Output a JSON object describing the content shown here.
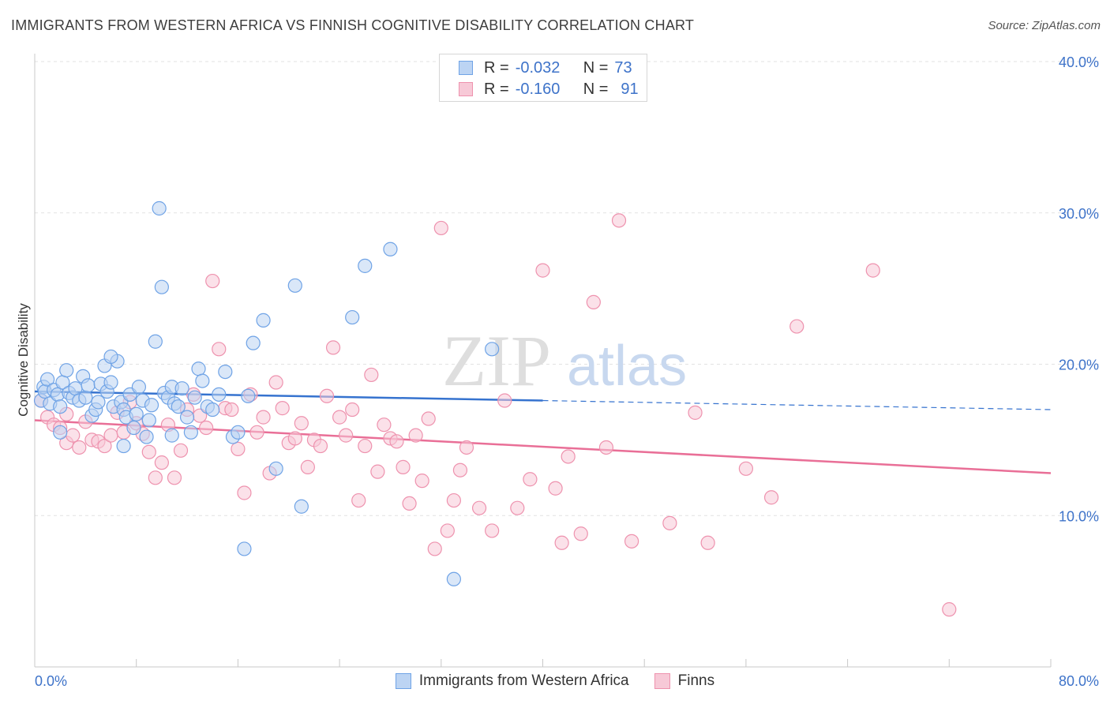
{
  "header": {
    "title": "IMMIGRANTS FROM WESTERN AFRICA VS FINNISH COGNITIVE DISABILITY CORRELATION CHART",
    "source": "Source: ZipAtlas.com"
  },
  "watermark": {
    "zip": "ZIP",
    "atlas": "atlas"
  },
  "legend": {
    "rows": [
      {
        "r_label": "R =",
        "r_value": "-0.032",
        "n_label": "N =",
        "n_value": "73"
      },
      {
        "r_label": "R =",
        "r_value": "-0.160",
        "n_label": "N =",
        "n_value": "91"
      }
    ]
  },
  "bottom_legend": {
    "series_a": "Immigrants from Western Africa",
    "series_b": "Finns"
  },
  "axes": {
    "x_min_label": "0.0%",
    "x_max_label": "80.0%",
    "ylabel": "Cognitive Disability"
  },
  "colors": {
    "blue": "#6fa3e6",
    "blue_fill": "#bcd4f3",
    "blue_line": "#3673cf",
    "pink": "#ee92ae",
    "pink_fill": "#f7c9d7",
    "pink_line": "#e96f97",
    "grid": "#e2e2e2",
    "tick_text": "#3e73c9"
  },
  "chart_data": {
    "type": "scatter",
    "title": "IMMIGRANTS FROM WESTERN AFRICA VS FINNISH COGNITIVE DISABILITY CORRELATION CHART",
    "xlabel": "",
    "ylabel": "Cognitive Disability",
    "xlim": [
      0,
      80
    ],
    "ylim": [
      0,
      40
    ],
    "y_ticks": [
      10,
      20,
      30,
      40
    ],
    "y_tick_labels": [
      "10.0%",
      "20.0%",
      "30.0%",
      "40.0%"
    ],
    "grid": true,
    "legend_position": "top-center",
    "series": [
      {
        "name": "Immigrants from Western Africa",
        "R": -0.032,
        "N": 73,
        "trend": {
          "x": [
            0,
            40
          ],
          "y": [
            18.2,
            17.6
          ],
          "dashed_to": [
            80,
            17.0
          ]
        },
        "points": [
          [
            0.5,
            17.6
          ],
          [
            0.7,
            18.5
          ],
          [
            0.8,
            18.2
          ],
          [
            1.0,
            19.0
          ],
          [
            1.2,
            17.4
          ],
          [
            1.5,
            18.3
          ],
          [
            1.8,
            18.0
          ],
          [
            2.0,
            17.2
          ],
          [
            2.2,
            18.8
          ],
          [
            2.5,
            19.6
          ],
          [
            2.7,
            18.1
          ],
          [
            3.0,
            17.8
          ],
          [
            3.2,
            18.4
          ],
          [
            3.5,
            17.6
          ],
          [
            3.8,
            19.2
          ],
          [
            4.0,
            17.8
          ],
          [
            4.2,
            18.6
          ],
          [
            4.5,
            16.6
          ],
          [
            4.8,
            17.0
          ],
          [
            5.0,
            17.5
          ],
          [
            5.2,
            18.7
          ],
          [
            5.5,
            19.9
          ],
          [
            5.7,
            18.2
          ],
          [
            6.0,
            18.8
          ],
          [
            6.2,
            17.2
          ],
          [
            6.5,
            20.2
          ],
          [
            6.8,
            17.5
          ],
          [
            7.0,
            17.0
          ],
          [
            7.2,
            16.5
          ],
          [
            7.5,
            18.0
          ],
          [
            7.8,
            15.8
          ],
          [
            8.0,
            16.7
          ],
          [
            8.2,
            18.5
          ],
          [
            8.5,
            17.6
          ],
          [
            8.8,
            15.2
          ],
          [
            9.0,
            16.3
          ],
          [
            9.2,
            17.3
          ],
          [
            9.5,
            21.5
          ],
          [
            9.8,
            30.3
          ],
          [
            10.0,
            25.1
          ],
          [
            10.2,
            18.1
          ],
          [
            10.5,
            17.8
          ],
          [
            10.8,
            18.5
          ],
          [
            11.0,
            17.4
          ],
          [
            11.3,
            17.2
          ],
          [
            11.6,
            18.4
          ],
          [
            12.0,
            16.5
          ],
          [
            12.3,
            15.5
          ],
          [
            12.6,
            17.8
          ],
          [
            12.9,
            19.7
          ],
          [
            13.2,
            18.9
          ],
          [
            13.6,
            17.2
          ],
          [
            14.0,
            17.0
          ],
          [
            14.5,
            18.0
          ],
          [
            15.0,
            19.5
          ],
          [
            15.6,
            15.2
          ],
          [
            16.0,
            15.5
          ],
          [
            16.8,
            17.9
          ],
          [
            17.2,
            21.4
          ],
          [
            18.0,
            22.9
          ],
          [
            19.0,
            13.1
          ],
          [
            20.5,
            25.2
          ],
          [
            21.0,
            10.6
          ],
          [
            25.0,
            23.1
          ],
          [
            26.0,
            26.5
          ],
          [
            28.0,
            27.6
          ],
          [
            36.0,
            21.0
          ],
          [
            33.0,
            5.8
          ],
          [
            10.8,
            15.3
          ],
          [
            7.0,
            14.6
          ],
          [
            2.0,
            15.5
          ],
          [
            16.5,
            7.8
          ],
          [
            6.0,
            20.5
          ]
        ]
      },
      {
        "name": "Finns",
        "R": -0.16,
        "N": 91,
        "trend": {
          "x": [
            0,
            80
          ],
          "y": [
            16.3,
            12.8
          ]
        },
        "points": [
          [
            0.5,
            17.6
          ],
          [
            1.0,
            16.5
          ],
          [
            1.5,
            16.0
          ],
          [
            2.0,
            15.8
          ],
          [
            2.5,
            14.8
          ],
          [
            3.0,
            15.3
          ],
          [
            3.5,
            14.5
          ],
          [
            4.0,
            16.2
          ],
          [
            4.5,
            15.0
          ],
          [
            5.0,
            14.9
          ],
          [
            5.5,
            14.6
          ],
          [
            6.0,
            15.3
          ],
          [
            6.5,
            16.8
          ],
          [
            7.0,
            15.5
          ],
          [
            7.5,
            17.5
          ],
          [
            8.0,
            16.1
          ],
          [
            8.5,
            15.4
          ],
          [
            9.0,
            14.2
          ],
          [
            9.5,
            12.5
          ],
          [
            10.0,
            13.5
          ],
          [
            10.5,
            16.0
          ],
          [
            11.0,
            12.5
          ],
          [
            11.5,
            14.3
          ],
          [
            12.0,
            17.0
          ],
          [
            12.5,
            18.0
          ],
          [
            13.0,
            16.6
          ],
          [
            13.5,
            15.8
          ],
          [
            14.0,
            25.5
          ],
          [
            14.5,
            21.0
          ],
          [
            15.0,
            17.1
          ],
          [
            15.5,
            17.0
          ],
          [
            16.0,
            14.4
          ],
          [
            16.5,
            11.5
          ],
          [
            17.0,
            18.0
          ],
          [
            17.5,
            15.5
          ],
          [
            18.0,
            16.5
          ],
          [
            18.5,
            12.8
          ],
          [
            19.0,
            18.8
          ],
          [
            19.5,
            17.1
          ],
          [
            20.0,
            14.8
          ],
          [
            20.5,
            15.1
          ],
          [
            21.0,
            16.1
          ],
          [
            21.5,
            13.2
          ],
          [
            22.0,
            15.0
          ],
          [
            22.5,
            14.6
          ],
          [
            23.0,
            17.9
          ],
          [
            23.5,
            21.1
          ],
          [
            24.0,
            16.5
          ],
          [
            24.5,
            15.3
          ],
          [
            25.0,
            17.0
          ],
          [
            25.5,
            11.0
          ],
          [
            26.0,
            14.6
          ],
          [
            26.5,
            19.3
          ],
          [
            27.0,
            12.9
          ],
          [
            27.5,
            16.0
          ],
          [
            28.0,
            15.1
          ],
          [
            28.5,
            14.9
          ],
          [
            29.0,
            13.2
          ],
          [
            29.5,
            10.8
          ],
          [
            30.0,
            15.3
          ],
          [
            30.5,
            12.3
          ],
          [
            31.0,
            16.4
          ],
          [
            31.5,
            7.8
          ],
          [
            32.0,
            29.0
          ],
          [
            32.5,
            9.0
          ],
          [
            33.0,
            11.0
          ],
          [
            33.5,
            13.0
          ],
          [
            34.0,
            14.5
          ],
          [
            35.0,
            10.5
          ],
          [
            36.0,
            9.0
          ],
          [
            37.0,
            17.6
          ],
          [
            38.0,
            10.5
          ],
          [
            39.0,
            12.4
          ],
          [
            40.0,
            26.2
          ],
          [
            41.0,
            11.8
          ],
          [
            41.5,
            8.2
          ],
          [
            42.0,
            13.9
          ],
          [
            43.0,
            8.8
          ],
          [
            44.0,
            24.1
          ],
          [
            45.0,
            14.5
          ],
          [
            46.0,
            29.5
          ],
          [
            47.0,
            8.3
          ],
          [
            50.0,
            9.5
          ],
          [
            52.0,
            16.8
          ],
          [
            53.0,
            8.2
          ],
          [
            56.0,
            13.1
          ],
          [
            58.0,
            11.2
          ],
          [
            60.0,
            22.5
          ],
          [
            66.0,
            26.2
          ],
          [
            72.0,
            3.8
          ],
          [
            2.5,
            16.7
          ]
        ]
      }
    ]
  }
}
